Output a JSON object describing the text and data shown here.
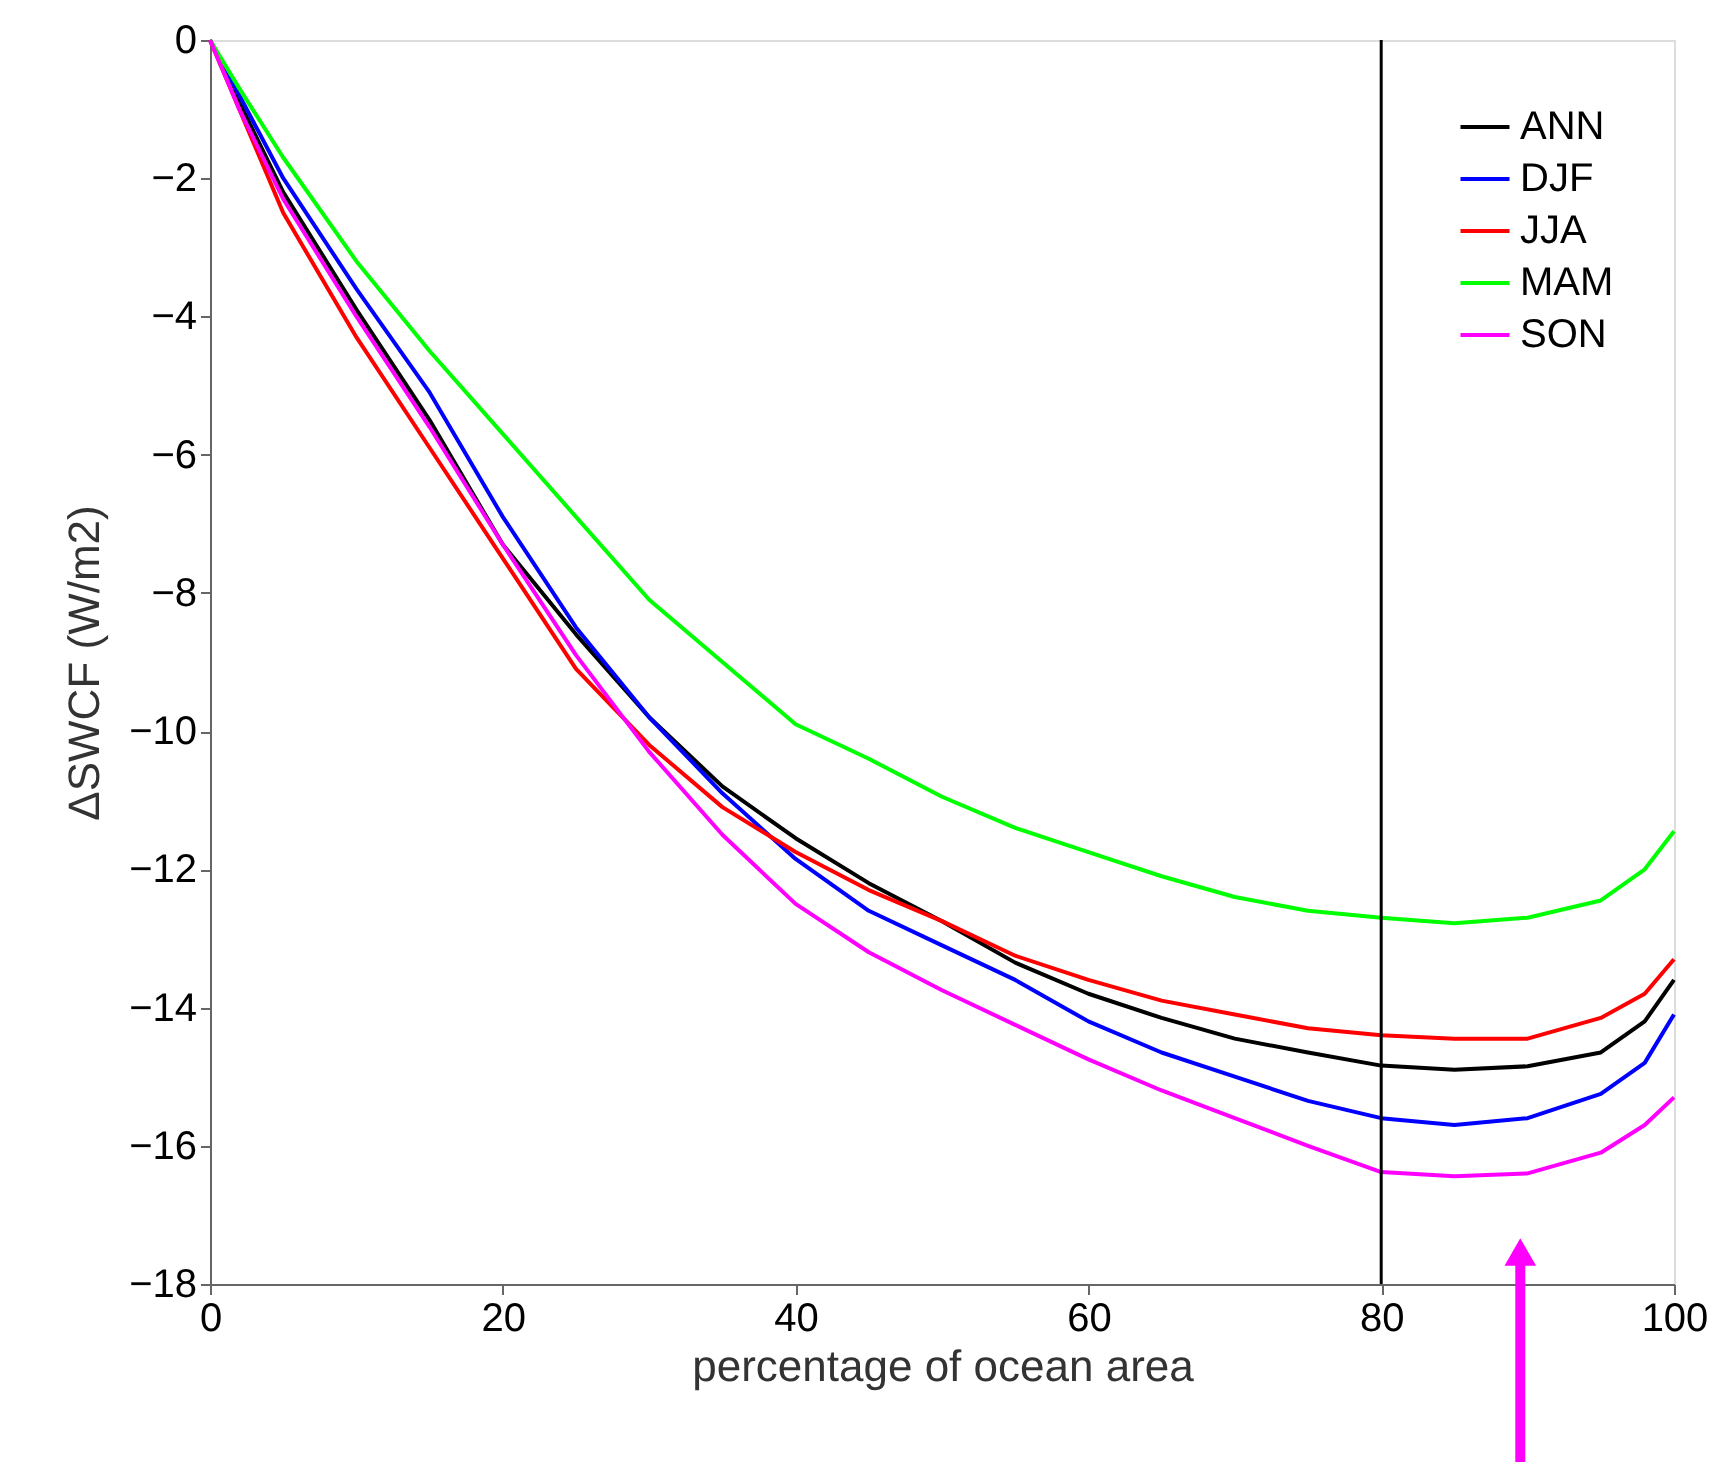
{
  "chart_data": {
    "type": "line",
    "xlabel": "percentage of ocean area",
    "ylabel": "ΔSWCF (W/m2)",
    "x": [
      0,
      2,
      5,
      10,
      15,
      20,
      25,
      30,
      35,
      40,
      45,
      50,
      55,
      60,
      65,
      70,
      75,
      80,
      85,
      90,
      95,
      98,
      100
    ],
    "series": [
      {
        "name": "ANN",
        "color": "#000000",
        "values": [
          0,
          -0.9,
          -2.2,
          -3.9,
          -5.5,
          -7.3,
          -8.6,
          -9.8,
          -10.8,
          -11.55,
          -12.2,
          -12.75,
          -13.35,
          -13.8,
          -14.15,
          -14.45,
          -14.65,
          -14.84,
          -14.9,
          -14.85,
          -14.65,
          -14.2,
          -13.6
        ]
      },
      {
        "name": "DJF",
        "color": "#0000ff",
        "values": [
          0,
          -0.8,
          -2.0,
          -3.6,
          -5.1,
          -6.9,
          -8.5,
          -9.8,
          -10.9,
          -11.85,
          -12.6,
          -13.1,
          -13.6,
          -14.2,
          -14.65,
          -15.0,
          -15.35,
          -15.6,
          -15.7,
          -15.6,
          -15.25,
          -14.8,
          -14.1
        ]
      },
      {
        "name": "JJA",
        "color": "#ff0000",
        "values": [
          0,
          -1.0,
          -2.5,
          -4.3,
          -5.9,
          -7.5,
          -9.1,
          -10.2,
          -11.1,
          -11.75,
          -12.3,
          -12.75,
          -13.25,
          -13.6,
          -13.9,
          -14.1,
          -14.3,
          -14.4,
          -14.45,
          -14.45,
          -14.15,
          -13.8,
          -13.3
        ]
      },
      {
        "name": "MAM",
        "color": "#00ff00",
        "values": [
          0,
          -0.7,
          -1.7,
          -3.2,
          -4.5,
          -5.7,
          -6.9,
          -8.1,
          -9.0,
          -9.9,
          -10.4,
          -10.95,
          -11.4,
          -11.75,
          -12.1,
          -12.4,
          -12.6,
          -12.7,
          -12.78,
          -12.7,
          -12.45,
          -12.0,
          -11.45
        ]
      },
      {
        "name": "SON",
        "color": "#ff00ff",
        "values": [
          0,
          -1.0,
          -2.3,
          -4.0,
          -5.6,
          -7.3,
          -8.9,
          -10.3,
          -11.5,
          -12.5,
          -13.2,
          -13.75,
          -14.25,
          -14.75,
          -15.2,
          -15.6,
          -16.0,
          -16.38,
          -16.44,
          -16.4,
          -16.1,
          -15.7,
          -15.3
        ]
      }
    ],
    "xlim": [
      0,
      100
    ],
    "xticks": [
      0,
      20,
      40,
      60,
      80,
      100
    ],
    "ylim": [
      -18,
      0
    ],
    "yticks": [
      -18,
      -16,
      -14,
      -12,
      -10,
      -8,
      -6,
      -4,
      -2,
      0
    ],
    "ref_lines": [
      {
        "axis": "x",
        "value": 80,
        "color": "#000000"
      }
    ],
    "legend": "top right",
    "grid": false
  }
}
